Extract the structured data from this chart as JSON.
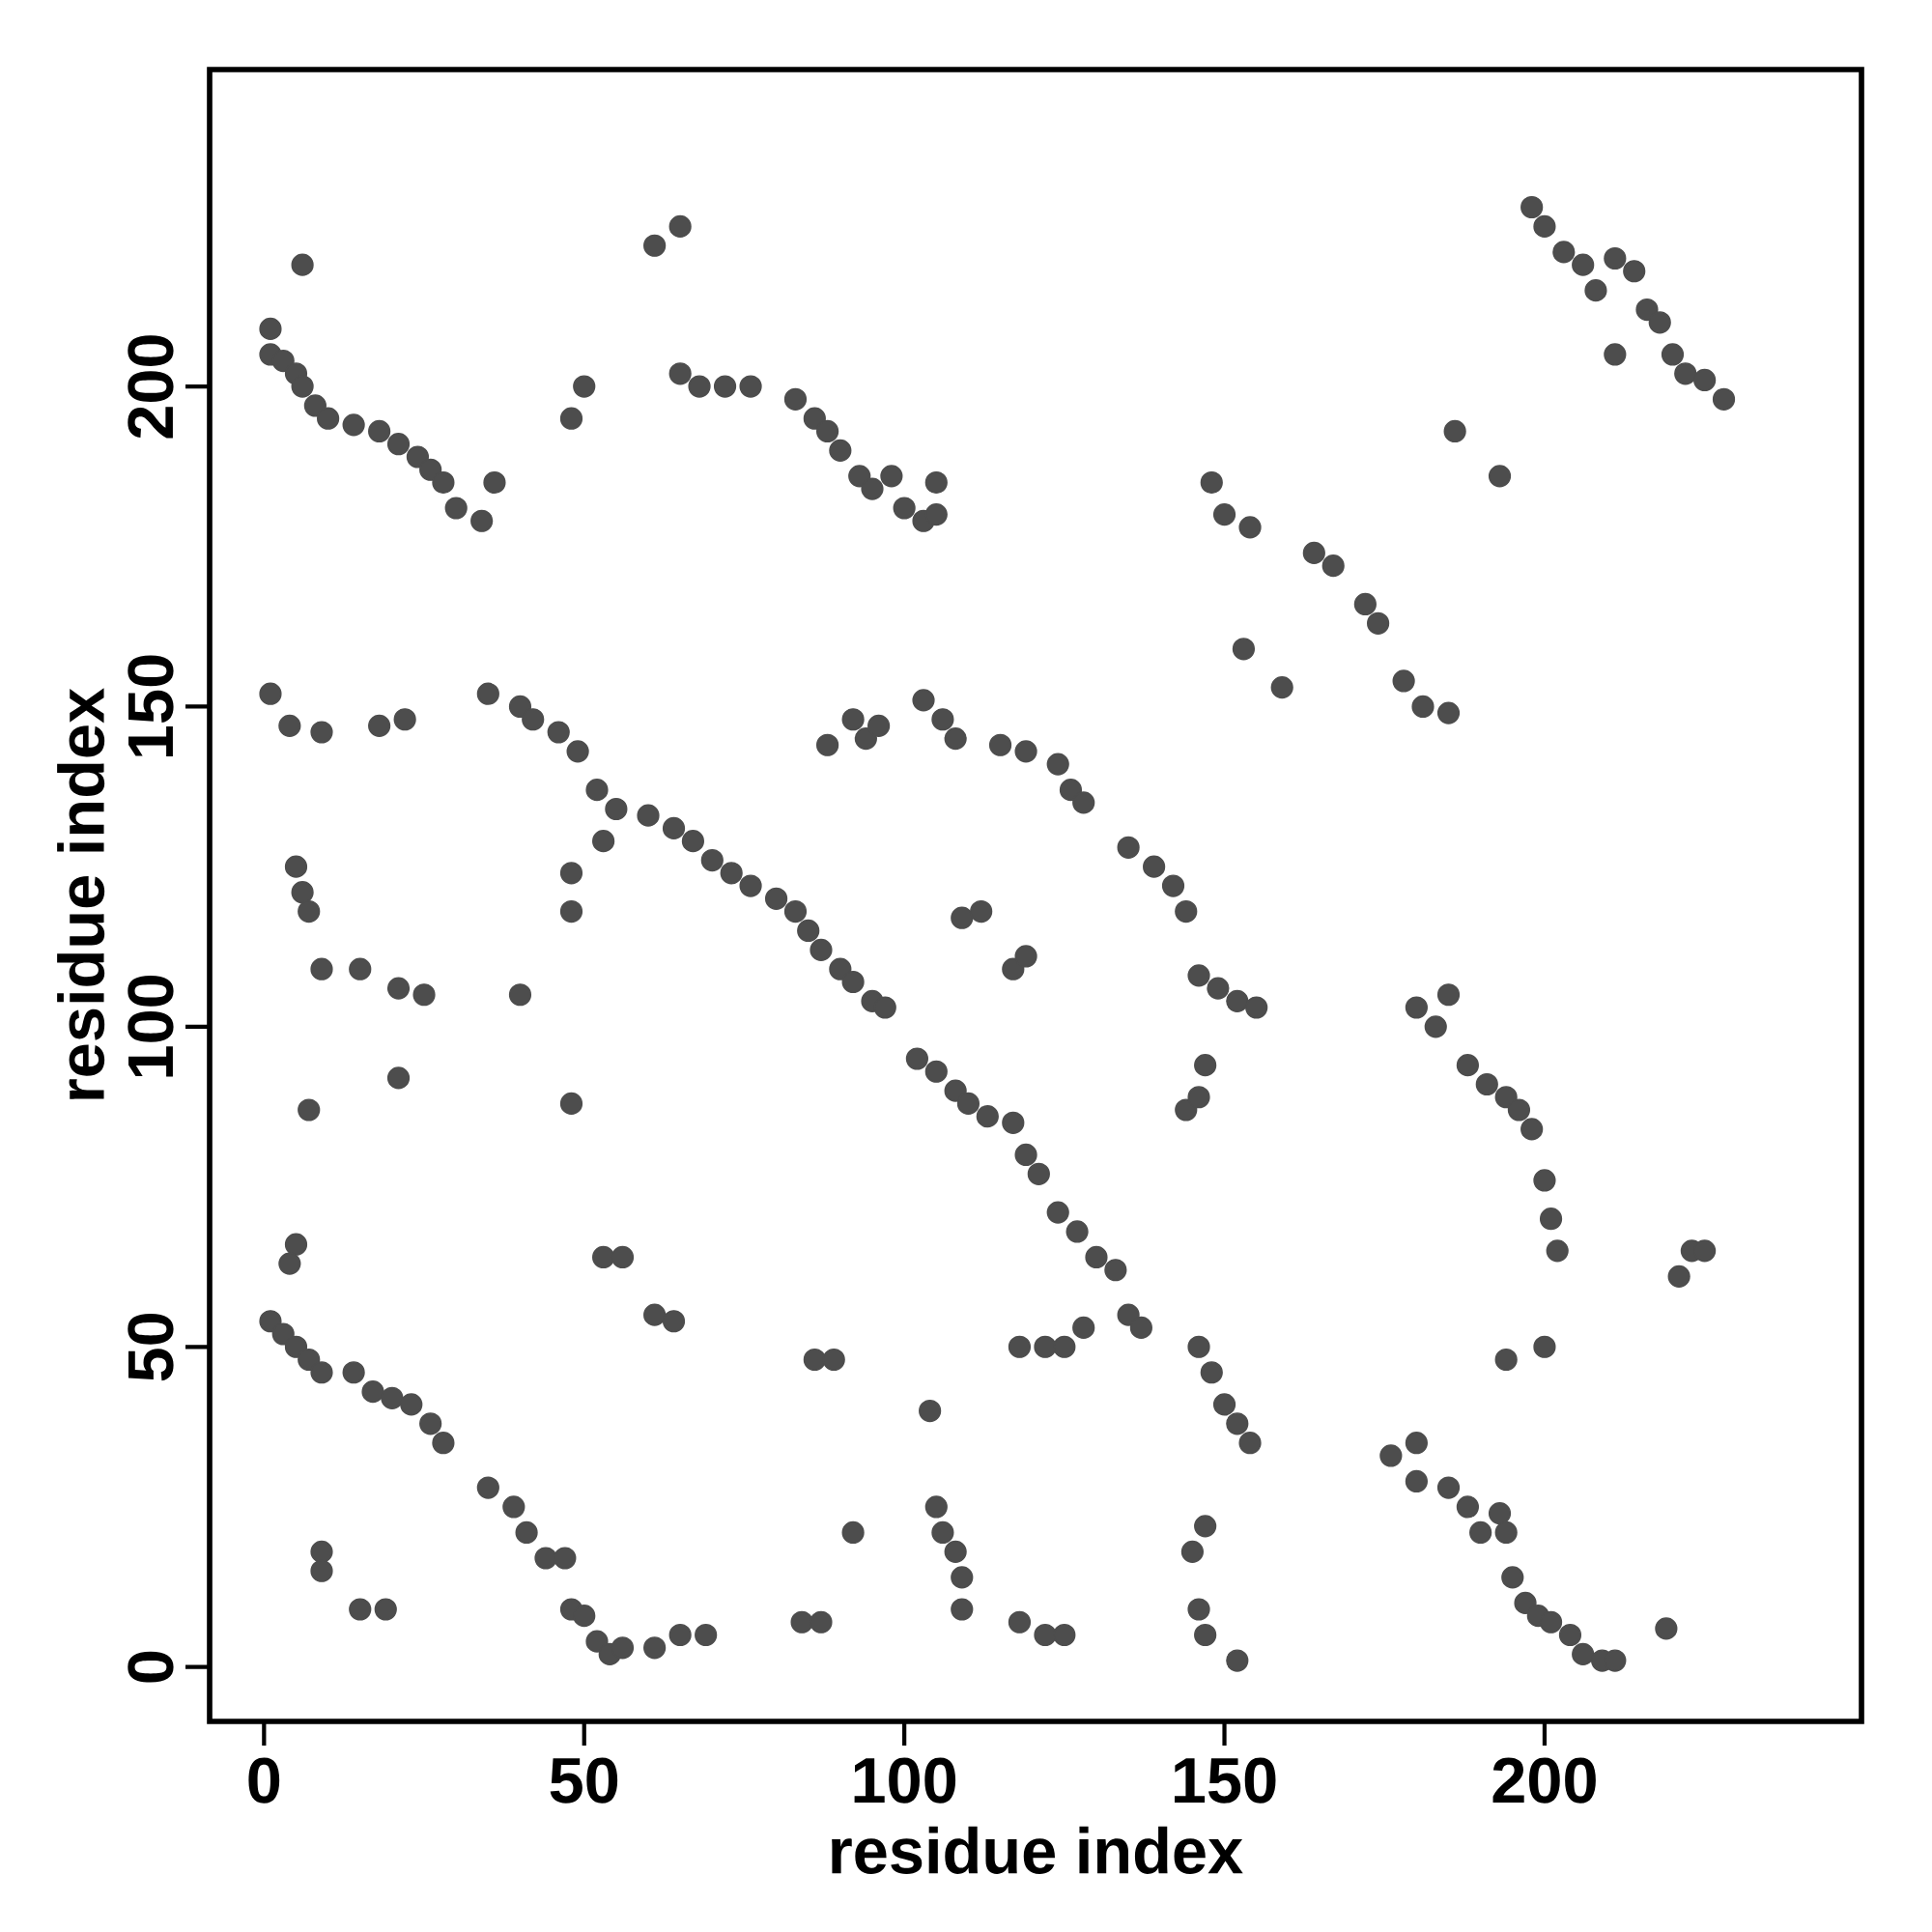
{
  "chart_data": {
    "type": "scatter",
    "xlabel": "residue index",
    "ylabel": "residue index",
    "xlim": [
      -8.5,
      249.5
    ],
    "ylim": [
      -8.5,
      249.5
    ],
    "xticks": [
      0,
      50,
      100,
      150,
      200
    ],
    "yticks": [
      0,
      50,
      100,
      150,
      200
    ],
    "marker": "circle",
    "series": [
      {
        "color": "#4d4d4d",
        "x": [
          1,
          1,
          3,
          5,
          6,
          8,
          10,
          14,
          18,
          21,
          24,
          26,
          28,
          30,
          34,
          36,
          6,
          61,
          65,
          48,
          50,
          65,
          68,
          72,
          76,
          83,
          86,
          88,
          90,
          93,
          95,
          98,
          100,
          103,
          105,
          105,
          198,
          200,
          203,
          206,
          208,
          211,
          214,
          216,
          218,
          220,
          222,
          225,
          228,
          211,
          186,
          193,
          148,
          150,
          154,
          164,
          167,
          172,
          174,
          153,
          159,
          178,
          181,
          185,
          1,
          4,
          9,
          18,
          22,
          35,
          40,
          42,
          46,
          49,
          52,
          55,
          53,
          48,
          48,
          5,
          6,
          7,
          9,
          15,
          21,
          25,
          40,
          21,
          7,
          48,
          60,
          64,
          67,
          70,
          73,
          76,
          80,
          83,
          85,
          87,
          90,
          92,
          95,
          97,
          102,
          105,
          108,
          110,
          113,
          117,
          119,
          121,
          124,
          127,
          130,
          133,
          135,
          137,
          128,
          146,
          148,
          150,
          152,
          154,
          103,
          106,
          108,
          115,
          119,
          124,
          126,
          128,
          135,
          139,
          142,
          144,
          146,
          149,
          152,
          155,
          109,
          112,
          117,
          119,
          88,
          92,
          94,
          96,
          144,
          146,
          147,
          180,
          183,
          185,
          188,
          191,
          194,
          196,
          198,
          200,
          201,
          202,
          221,
          223,
          225,
          194,
          200,
          1,
          3,
          5,
          7,
          9,
          14,
          17,
          20,
          23,
          26,
          28,
          35,
          39,
          41,
          44,
          47,
          48,
          50,
          52,
          54,
          56,
          5,
          4,
          9,
          9,
          15,
          19,
          53,
          56,
          61,
          64,
          61,
          65,
          69,
          84,
          87,
          86,
          89,
          92,
          104,
          105,
          106,
          108,
          109,
          109,
          118,
          122,
          125,
          118,
          122,
          125,
          145,
          147,
          146,
          147,
          152,
          176,
          180,
          180,
          185,
          188,
          190,
          193,
          194,
          195,
          197,
          199,
          201,
          204,
          206,
          209,
          211,
          219
        ],
        "values": [
          209,
          205,
          204,
          202,
          200,
          197,
          195,
          194,
          193,
          191,
          189,
          187,
          185,
          181,
          179,
          185,
          219,
          222,
          225,
          195,
          200,
          202,
          200,
          200,
          200,
          198,
          195,
          193,
          190,
          186,
          184,
          186,
          181,
          179,
          185,
          180,
          228,
          225,
          221,
          219,
          215,
          220,
          218,
          212,
          210,
          205,
          202,
          201,
          198,
          205,
          193,
          186,
          185,
          180,
          178,
          174,
          172,
          166,
          163,
          159,
          153,
          154,
          150,
          149,
          152,
          147,
          146,
          147,
          148,
          152,
          150,
          148,
          146,
          143,
          137,
          134,
          129,
          124,
          118,
          125,
          121,
          118,
          109,
          109,
          106,
          105,
          105,
          92,
          87,
          88,
          133,
          131,
          129,
          126,
          124,
          122,
          120,
          118,
          115,
          112,
          109,
          107,
          104,
          103,
          95,
          93,
          90,
          88,
          86,
          85,
          80,
          77,
          71,
          68,
          64,
          62,
          55,
          53,
          53,
          50,
          46,
          41,
          38,
          35,
          151,
          148,
          145,
          144,
          143,
          141,
          137,
          135,
          128,
          125,
          122,
          118,
          108,
          106,
          104,
          103,
          117,
          118,
          109,
          111,
          144,
          148,
          145,
          147,
          87,
          89,
          94,
          103,
          100,
          105,
          94,
          91,
          89,
          87,
          84,
          76,
          70,
          65,
          61,
          65,
          65,
          48,
          50,
          54,
          52,
          50,
          48,
          46,
          46,
          43,
          42,
          41,
          38,
          35,
          28,
          25,
          21,
          17,
          17,
          9,
          8,
          4,
          2,
          3,
          66,
          63,
          18,
          15,
          9,
          9,
          64,
          64,
          55,
          54,
          3,
          5,
          5,
          7,
          7,
          48,
          48,
          21,
          40,
          25,
          21,
          18,
          14,
          9,
          7,
          5,
          5,
          50,
          50,
          50,
          18,
          22,
          9,
          5,
          1,
          33,
          35,
          29,
          28,
          25,
          21,
          24,
          21,
          14,
          10,
          8,
          7,
          5,
          2,
          1,
          1,
          6
        ]
      }
    ]
  }
}
